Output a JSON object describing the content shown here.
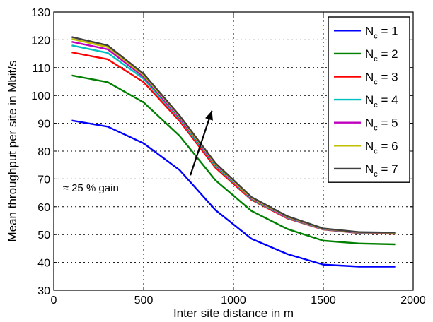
{
  "chart_data": {
    "type": "line",
    "xlabel": "Inter site distance in m",
    "ylabel": "Mean throughput per site in Mbit/s",
    "xlim": [
      0,
      2000
    ],
    "ylim": [
      30,
      130
    ],
    "xticks": [
      0,
      500,
      1000,
      1500,
      2000
    ],
    "yticks": [
      30,
      40,
      50,
      60,
      70,
      80,
      90,
      100,
      110,
      120,
      130
    ],
    "grid": true,
    "legend_position": "top-right",
    "x": [
      100,
      300,
      500,
      700,
      900,
      1100,
      1300,
      1500,
      1700,
      1900
    ],
    "series": [
      {
        "name": "N_c = 1",
        "legend_main": "N",
        "legend_sub": "c",
        "legend_rest": " = 1",
        "color": "#0000ff",
        "values": [
          91,
          88.8,
          82.8,
          73.2,
          58.8,
          48.5,
          43,
          39.2,
          38.5,
          38.5
        ]
      },
      {
        "name": "N_c = 2",
        "legend_main": "N",
        "legend_sub": "c",
        "legend_rest": " = 2",
        "color": "#008000",
        "values": [
          107.2,
          104.8,
          97.5,
          85.5,
          69.5,
          58.5,
          52,
          47.8,
          46.8,
          46.5
        ]
      },
      {
        "name": "N_c = 3",
        "legend_main": "N",
        "legend_sub": "c",
        "legend_rest": " = 3",
        "color": "#ff0000",
        "values": [
          115.5,
          113,
          104.8,
          90.8,
          74,
          62.5,
          55.8,
          51.8,
          50.5,
          50.3
        ]
      },
      {
        "name": "N_c = 4",
        "legend_main": "N",
        "legend_sub": "c",
        "legend_rest": " = 4",
        "color": "#00bfbf",
        "values": [
          118,
          115.3,
          106,
          91.5,
          74.7,
          62.8,
          56,
          51.9,
          50.6,
          50.4
        ]
      },
      {
        "name": "N_c = 5",
        "legend_main": "N",
        "legend_sub": "c",
        "legend_rest": " = 5",
        "color": "#bf00bf",
        "values": [
          119.3,
          116.6,
          106.7,
          92,
          75.1,
          63,
          56.2,
          52,
          50.7,
          50.5
        ]
      },
      {
        "name": "N_c = 6",
        "legend_main": "N",
        "legend_sub": "c",
        "legend_rest": " = 6",
        "color": "#bfbf00",
        "values": [
          120.3,
          117.4,
          107.3,
          92.4,
          75.4,
          63.2,
          56.4,
          52.1,
          50.8,
          50.6
        ]
      },
      {
        "name": "N_c = 7",
        "legend_main": "N",
        "legend_sub": "c",
        "legend_rest": " = 7",
        "color": "#404040",
        "values": [
          121,
          118,
          107.8,
          92.8,
          75.7,
          63.5,
          56.6,
          52.2,
          50.9,
          50.7
        ]
      }
    ],
    "annotations": [
      {
        "text": "≈ 25 % gain",
        "x": 50,
        "y": 65.5
      }
    ],
    "arrow": {
      "from": [
        760,
        71.3
      ],
      "to": [
        880,
        94.5
      ]
    }
  }
}
